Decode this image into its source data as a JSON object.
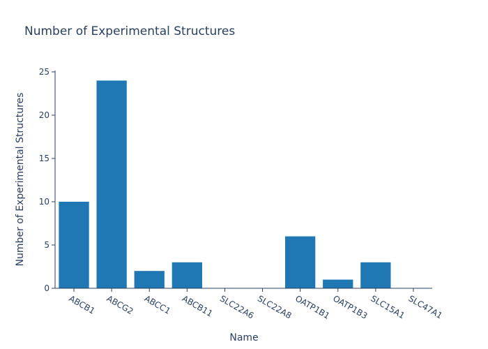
{
  "chart_data": {
    "type": "bar",
    "title": "Number of Experimental Structures",
    "xlabel": "Name",
    "ylabel": "Number of Experimental Structures",
    "categories": [
      "ABCB1",
      "ABCG2",
      "ABCC1",
      "ABCB11",
      "SLC22A6",
      "SLC22A8",
      "OATP1B1",
      "OATP1B3",
      "SLC15A1",
      "SLC47A1"
    ],
    "values": [
      10,
      24,
      2,
      3,
      0,
      0,
      6,
      1,
      3,
      0
    ],
    "ylim": [
      0,
      25
    ],
    "yticks": [
      0,
      5,
      10,
      15,
      20,
      25
    ],
    "bar_color": "#1f77b4",
    "grid": false
  }
}
